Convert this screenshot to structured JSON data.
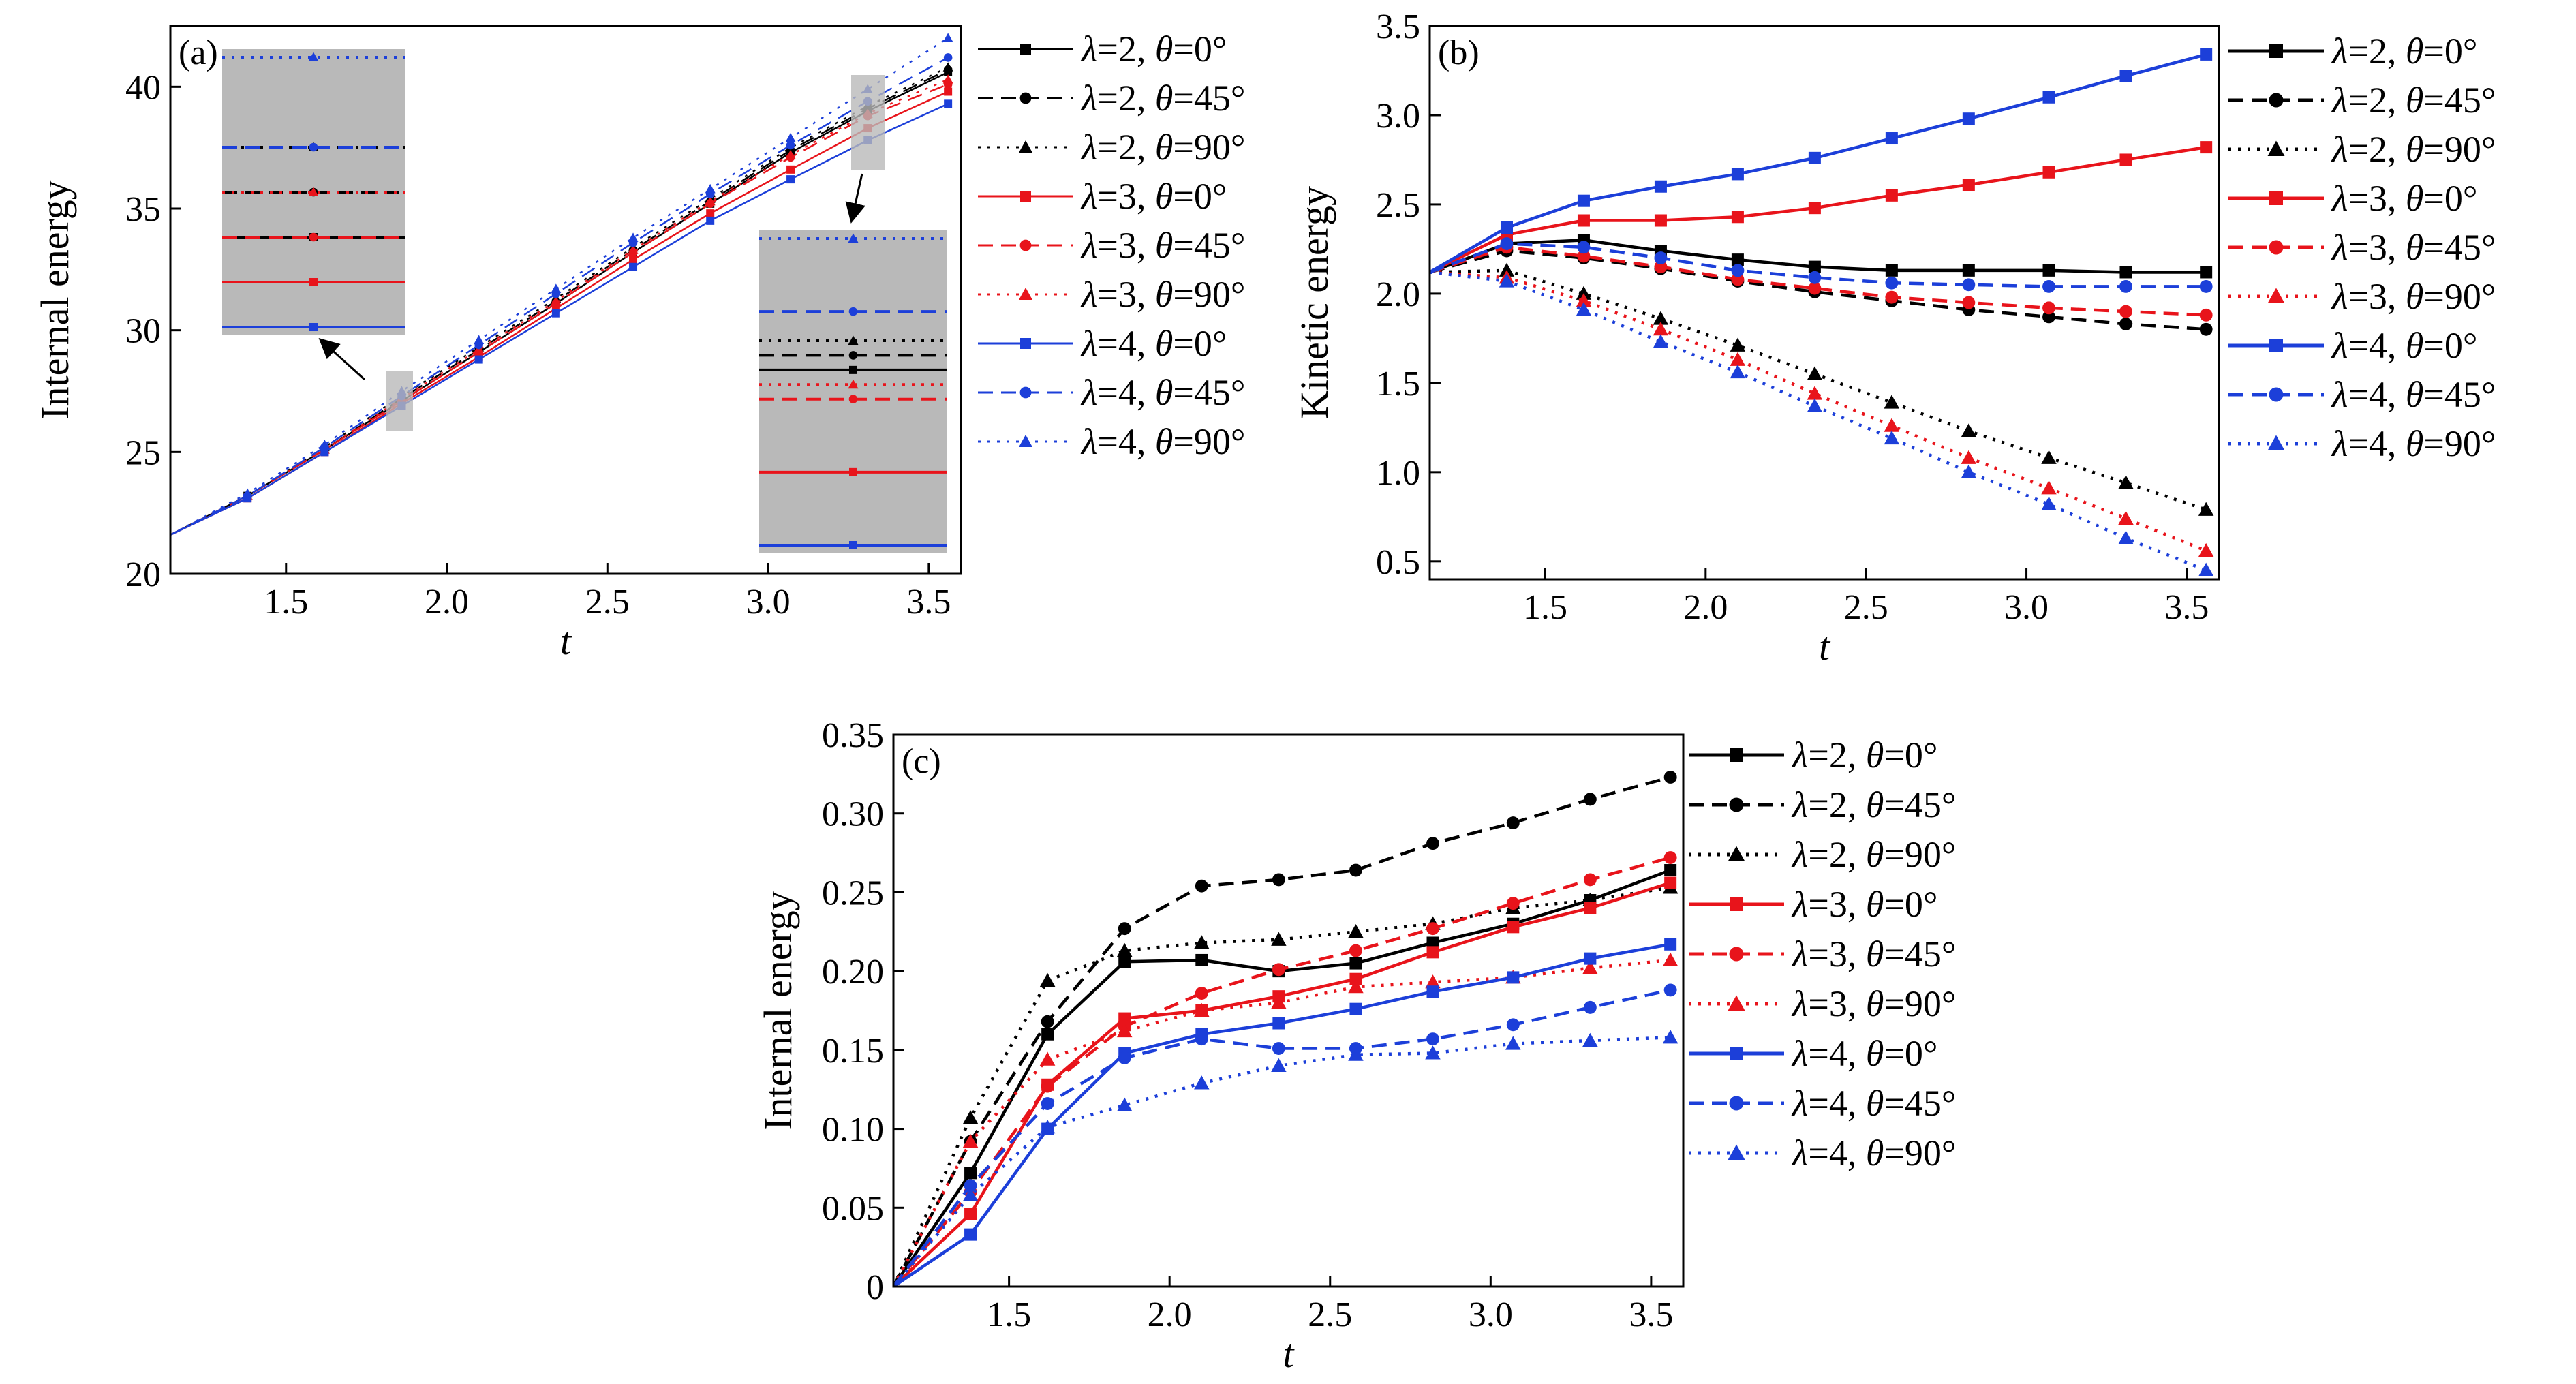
{
  "colors": {
    "black": "#000000",
    "red": "#e8141b",
    "blue": "#1c3fd9",
    "inset": "#b9b9b9"
  },
  "legend": [
    {
      "lam": "2",
      "theta": "0°",
      "color": "black",
      "style": "solid",
      "marker": "square"
    },
    {
      "lam": "2",
      "theta": "45°",
      "color": "black",
      "style": "dashed",
      "marker": "circle"
    },
    {
      "lam": "2",
      "theta": "90°",
      "color": "black",
      "style": "dotted",
      "marker": "triangle"
    },
    {
      "lam": "3",
      "theta": "0°",
      "color": "red",
      "style": "solid",
      "marker": "square"
    },
    {
      "lam": "3",
      "theta": "45°",
      "color": "red",
      "style": "dashed",
      "marker": "circle"
    },
    {
      "lam": "3",
      "theta": "90°",
      "color": "red",
      "style": "dotted",
      "marker": "triangle"
    },
    {
      "lam": "4",
      "theta": "0°",
      "color": "blue",
      "style": "solid",
      "marker": "square"
    },
    {
      "lam": "4",
      "theta": "45°",
      "color": "blue",
      "style": "dashed",
      "marker": "circle"
    },
    {
      "lam": "4",
      "theta": "90°",
      "color": "blue",
      "style": "dotted",
      "marker": "triangle"
    }
  ],
  "chart_data": [
    {
      "panel": "(a)",
      "type": "line",
      "xlabel": "t",
      "ylabel": "Internal energy",
      "xlim": [
        1.14,
        3.6
      ],
      "ylim": [
        20,
        42.5
      ],
      "xticks": [
        1.5,
        2.0,
        2.5,
        3.0,
        3.5
      ],
      "xtick_labels": [
        "1.5",
        "2.0",
        "2.5",
        "3.0",
        "3.5"
      ],
      "yticks": [
        20,
        25,
        30,
        35,
        40
      ],
      "ytick_labels": [
        "20",
        "25",
        "30",
        "35",
        "40"
      ],
      "legend_style": "thin",
      "legend_position": "right-outside",
      "x": [
        1.14,
        1.38,
        1.62,
        1.86,
        2.1,
        2.34,
        2.58,
        2.82,
        3.07,
        3.31,
        3.56
      ],
      "series": [
        {
          "name": "λ=2, θ=0°",
          "values": [
            21.6,
            23.2,
            25.1,
            27.1,
            29.1,
            31.1,
            33.2,
            35.2,
            37.3,
            39.0,
            40.6
          ]
        },
        {
          "name": "λ=2, θ=45°",
          "values": [
            21.6,
            23.2,
            25.1,
            27.2,
            29.2,
            31.2,
            33.3,
            35.3,
            37.4,
            39.1,
            40.7
          ]
        },
        {
          "name": "λ=2, θ=90°",
          "values": [
            21.6,
            23.2,
            25.2,
            27.3,
            29.3,
            31.3,
            33.4,
            35.4,
            37.5,
            39.2,
            40.8
          ]
        },
        {
          "name": "λ=3, θ=0°",
          "values": [
            21.6,
            23.1,
            25.0,
            27.0,
            28.9,
            30.9,
            32.9,
            34.8,
            36.6,
            38.3,
            39.8
          ]
        },
        {
          "name": "λ=3, θ=45°",
          "values": [
            21.6,
            23.2,
            25.1,
            27.1,
            29.1,
            31.1,
            33.2,
            35.2,
            37.1,
            38.8,
            40.1
          ]
        },
        {
          "name": "λ=3, θ=90°",
          "values": [
            21.6,
            23.2,
            25.1,
            27.2,
            29.2,
            31.2,
            33.3,
            35.3,
            37.2,
            38.9,
            40.3
          ]
        },
        {
          "name": "λ=4, θ=0°",
          "values": [
            21.6,
            23.1,
            25.0,
            26.9,
            28.8,
            30.7,
            32.6,
            34.5,
            36.2,
            37.8,
            39.3
          ]
        },
        {
          "name": "λ=4, θ=45°",
          "values": [
            21.6,
            23.2,
            25.2,
            27.3,
            29.4,
            31.5,
            33.6,
            35.6,
            37.6,
            39.4,
            41.2
          ]
        },
        {
          "name": "λ=4, θ=90°",
          "values": [
            21.6,
            23.3,
            25.3,
            27.5,
            29.6,
            31.7,
            33.8,
            35.8,
            37.9,
            39.9,
            42.0
          ]
        }
      ]
    },
    {
      "panel": "(b)",
      "type": "line",
      "xlabel": "t",
      "ylabel": "Kinetic energy",
      "xlim": [
        1.14,
        3.6
      ],
      "ylim": [
        0.4,
        3.5
      ],
      "xticks": [
        1.5,
        2.0,
        2.5,
        3.0,
        3.5
      ],
      "xtick_labels": [
        "1.5",
        "2.0",
        "2.5",
        "3.0",
        "3.5"
      ],
      "yticks": [
        0.5,
        1.0,
        1.5,
        2.0,
        2.5,
        3.0,
        3.5
      ],
      "ytick_labels": [
        "0.5",
        "1.0",
        "1.5",
        "2.0",
        "2.5",
        "3.0",
        "3.5"
      ],
      "legend_style": "thick",
      "legend_position": "right-outside",
      "x": [
        1.14,
        1.38,
        1.62,
        1.86,
        2.1,
        2.34,
        2.58,
        2.82,
        3.07,
        3.31,
        3.56
      ],
      "series": [
        {
          "name": "λ=2, θ=0°",
          "values": [
            2.12,
            2.28,
            2.3,
            2.24,
            2.19,
            2.15,
            2.13,
            2.13,
            2.13,
            2.12,
            2.12
          ]
        },
        {
          "name": "λ=2, θ=45°",
          "values": [
            2.12,
            2.24,
            2.2,
            2.14,
            2.07,
            2.01,
            1.96,
            1.91,
            1.87,
            1.83,
            1.8
          ]
        },
        {
          "name": "λ=2, θ=90°",
          "values": [
            2.12,
            2.13,
            2.0,
            1.86,
            1.71,
            1.55,
            1.39,
            1.23,
            1.08,
            0.94,
            0.79
          ]
        },
        {
          "name": "λ=3, θ=0°",
          "values": [
            2.12,
            2.33,
            2.41,
            2.41,
            2.43,
            2.48,
            2.55,
            2.61,
            2.68,
            2.75,
            2.82
          ]
        },
        {
          "name": "λ=3, θ=45°",
          "values": [
            2.12,
            2.26,
            2.21,
            2.15,
            2.08,
            2.03,
            1.98,
            1.95,
            1.92,
            1.9,
            1.88
          ]
        },
        {
          "name": "λ=3, θ=90°",
          "values": [
            2.12,
            2.09,
            1.96,
            1.8,
            1.63,
            1.44,
            1.26,
            1.08,
            0.91,
            0.74,
            0.56
          ]
        },
        {
          "name": "λ=4, θ=0°",
          "values": [
            2.12,
            2.37,
            2.52,
            2.6,
            2.67,
            2.76,
            2.87,
            2.98,
            3.1,
            3.22,
            3.34
          ]
        },
        {
          "name": "λ=4, θ=45°",
          "values": [
            2.12,
            2.28,
            2.26,
            2.2,
            2.13,
            2.09,
            2.06,
            2.05,
            2.04,
            2.04,
            2.04
          ]
        },
        {
          "name": "λ=4, θ=90°",
          "values": [
            2.12,
            2.07,
            1.91,
            1.73,
            1.56,
            1.37,
            1.19,
            1.0,
            0.82,
            0.63,
            0.45
          ]
        }
      ]
    },
    {
      "panel": "(c)",
      "type": "line",
      "xlabel": "t",
      "ylabel": "Internal energy",
      "xlim": [
        1.14,
        3.6
      ],
      "ylim": [
        0,
        0.35
      ],
      "xticks": [
        1.5,
        2.0,
        2.5,
        3.0,
        3.5
      ],
      "xtick_labels": [
        "1.5",
        "2.0",
        "2.5",
        "3.0",
        "3.5"
      ],
      "yticks": [
        0,
        0.05,
        0.1,
        0.15,
        0.2,
        0.25,
        0.3,
        0.35
      ],
      "ytick_labels": [
        "0",
        "0.05",
        "0.10",
        "0.15",
        "0.20",
        "0.25",
        "0.30",
        "0.35"
      ],
      "legend_style": "thick",
      "legend_position": "right-outside",
      "x": [
        1.14,
        1.38,
        1.62,
        1.86,
        2.1,
        2.34,
        2.58,
        2.82,
        3.07,
        3.31,
        3.56
      ],
      "series": [
        {
          "name": "λ=2, θ=0°",
          "values": [
            0.0,
            0.072,
            0.16,
            0.206,
            0.207,
            0.2,
            0.205,
            0.218,
            0.23,
            0.245,
            0.264
          ]
        },
        {
          "name": "λ=2, θ=45°",
          "values": [
            0.0,
            0.092,
            0.168,
            0.227,
            0.254,
            0.258,
            0.264,
            0.281,
            0.294,
            0.309,
            0.323
          ]
        },
        {
          "name": "λ=2, θ=90°",
          "values": [
            0.0,
            0.107,
            0.194,
            0.213,
            0.218,
            0.22,
            0.225,
            0.23,
            0.24,
            0.245,
            0.253
          ]
        },
        {
          "name": "λ=3, θ=0°",
          "values": [
            0.0,
            0.046,
            0.128,
            0.17,
            0.175,
            0.184,
            0.195,
            0.212,
            0.228,
            0.24,
            0.256
          ]
        },
        {
          "name": "λ=3, θ=45°",
          "values": [
            0.0,
            0.06,
            0.127,
            0.165,
            0.186,
            0.201,
            0.213,
            0.227,
            0.243,
            0.258,
            0.272
          ]
        },
        {
          "name": "λ=3, θ=90°",
          "values": [
            0.0,
            0.092,
            0.144,
            0.162,
            0.175,
            0.18,
            0.19,
            0.193,
            0.196,
            0.202,
            0.207
          ]
        },
        {
          "name": "λ=4, θ=0°",
          "values": [
            0.0,
            0.033,
            0.1,
            0.148,
            0.16,
            0.167,
            0.176,
            0.187,
            0.196,
            0.208,
            0.217
          ]
        },
        {
          "name": "λ=4, θ=45°",
          "values": [
            0.0,
            0.064,
            0.116,
            0.145,
            0.157,
            0.151,
            0.151,
            0.157,
            0.166,
            0.177,
            0.188
          ]
        },
        {
          "name": "λ=4, θ=90°",
          "values": [
            0.0,
            0.058,
            0.101,
            0.115,
            0.129,
            0.14,
            0.147,
            0.148,
            0.154,
            0.156,
            0.158
          ]
        }
      ]
    }
  ]
}
